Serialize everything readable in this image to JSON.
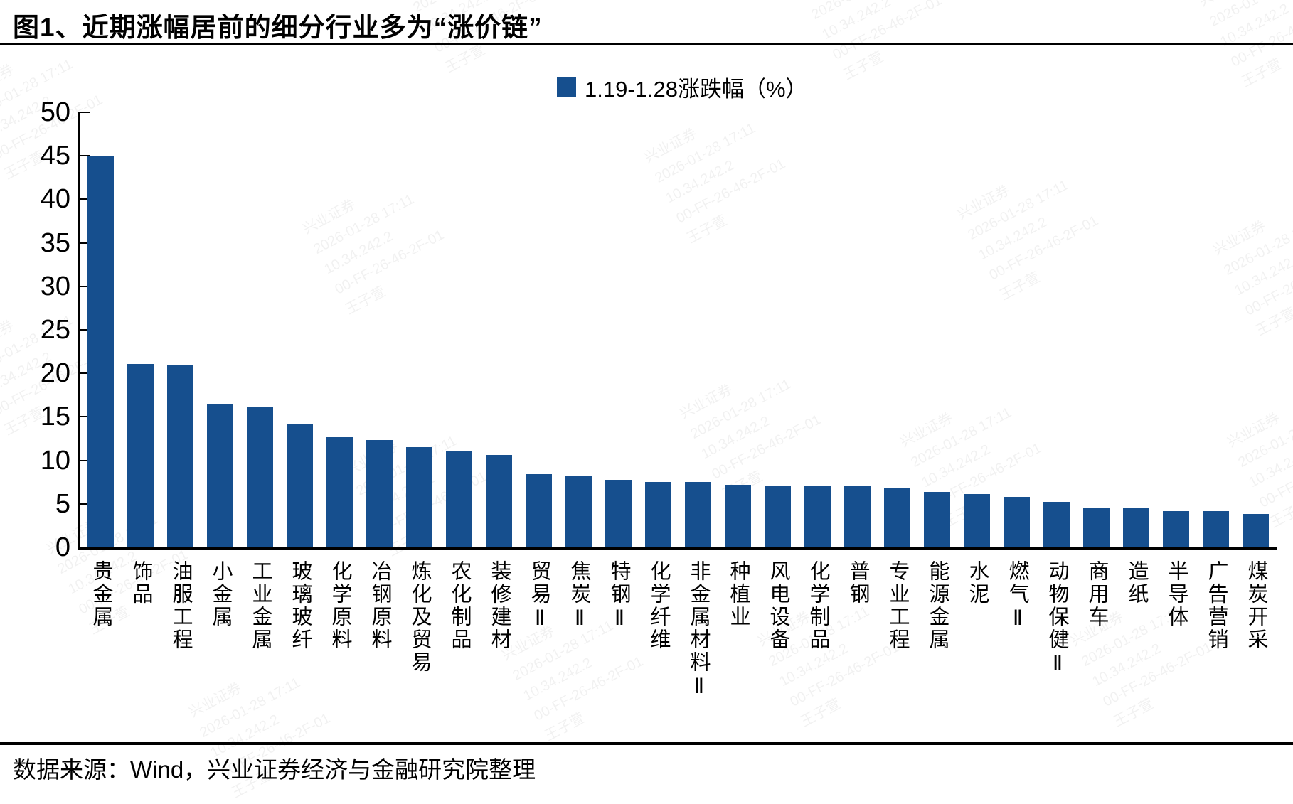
{
  "title": "图1、近期涨幅居前的细分行业多为“涨价链”",
  "legend": {
    "label": "1.19-1.28涨跌幅（%）"
  },
  "footer": {
    "source": "数据来源：Wind，兴业证券经济与金融研究院整理"
  },
  "watermark": {
    "lines": [
      "兴业证券",
      "2026-01-28 17:11",
      "10.34.242.2",
      "00-FF-26-46-2F-01",
      "王子萱"
    ]
  },
  "colors": {
    "bar": "#164f8e",
    "axis": "#000000"
  },
  "chart_data": {
    "type": "bar",
    "title": "图1、近期涨幅居前的细分行业多为“涨价链”",
    "legend": [
      "1.19-1.28涨跌幅（%）"
    ],
    "legend_position": "top-center",
    "grid": false,
    "xlabel": "",
    "ylabel": "",
    "ylim": [
      0,
      50
    ],
    "ytick_step": 5,
    "categories": [
      "贵金属",
      "饰品",
      "油服工程",
      "小金属",
      "工业金属",
      "玻璃玻纤",
      "化学原料",
      "冶钢原料",
      "炼化及贸易",
      "农化制品",
      "装修建材",
      "贸易Ⅱ",
      "焦炭Ⅱ",
      "特钢Ⅱ",
      "化学纤维",
      "非金属材料Ⅱ",
      "种植业",
      "风电设备",
      "化学制品",
      "普钢",
      "专业工程",
      "能源金属",
      "水泥",
      "燃气Ⅱ",
      "动物保健Ⅱ",
      "商用车",
      "造纸",
      "半导体",
      "广告营销",
      "煤炭开采"
    ],
    "values": [
      45.0,
      21.1,
      20.9,
      16.4,
      16.1,
      14.1,
      12.7,
      12.3,
      11.5,
      11.0,
      10.6,
      8.4,
      8.2,
      7.8,
      7.5,
      7.5,
      7.2,
      7.1,
      7.0,
      7.0,
      6.8,
      6.4,
      6.1,
      5.8,
      5.2,
      4.5,
      4.5,
      4.2,
      4.2,
      3.8
    ]
  }
}
